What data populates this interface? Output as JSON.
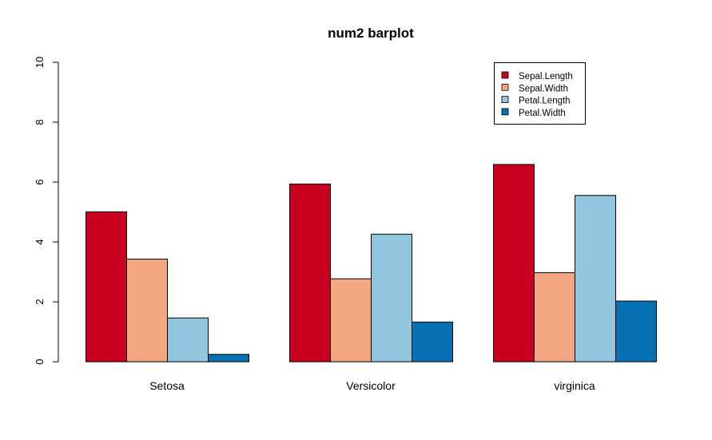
{
  "chart_data": {
    "type": "bar",
    "title": "num2 barplot",
    "xlabel": "",
    "ylabel": "",
    "categories": [
      "Setosa",
      "Versicolor",
      "virginica"
    ],
    "ylim": [
      0,
      10
    ],
    "yticks": [
      0,
      2,
      4,
      6,
      8,
      10
    ],
    "grid": false,
    "legend_position": "top-right",
    "series": [
      {
        "name": "Sepal.Length",
        "color": "#CA0020",
        "values": [
          5.006,
          5.936,
          6.588
        ]
      },
      {
        "name": "Sepal.Width",
        "color": "#F4A582",
        "values": [
          3.428,
          2.77,
          2.974
        ]
      },
      {
        "name": "Petal.Length",
        "color": "#92C5DE",
        "values": [
          1.462,
          4.26,
          5.552
        ]
      },
      {
        "name": "Petal.Width",
        "color": "#0571B0",
        "values": [
          0.246,
          1.326,
          2.026
        ]
      }
    ]
  }
}
